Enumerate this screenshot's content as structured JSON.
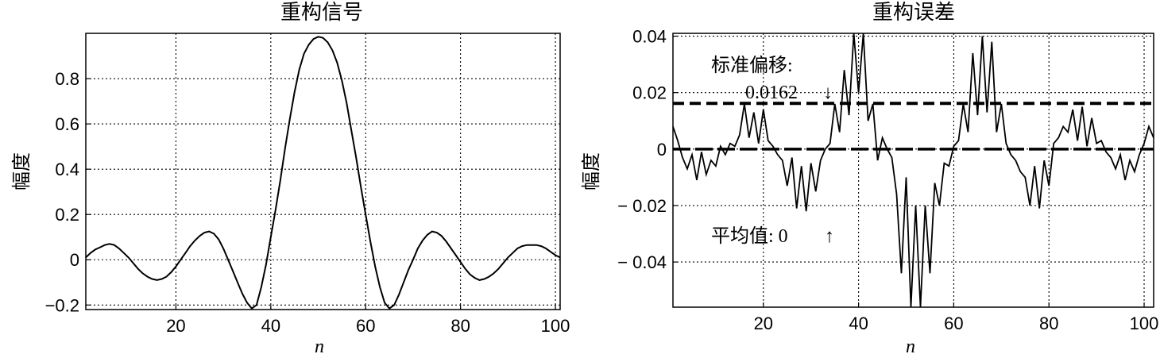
{
  "figure_titles": [
    "重构信号",
    "重构误差"
  ],
  "chart_data": [
    {
      "type": "line",
      "title": "重构信号",
      "xlabel": "n",
      "ylabel": "幅度",
      "xlim": [
        1,
        101
      ],
      "ylim": [
        -0.22,
        1.0
      ],
      "xticks": [
        20,
        40,
        60,
        80,
        100
      ],
      "xtick_labels": [
        "20",
        "40",
        "60",
        "80",
        "100"
      ],
      "yticks": [
        -0.2,
        0,
        0.2,
        0.4,
        0.6,
        0.8
      ],
      "ytick_labels": [
        "−0.2",
        "0",
        "0.2",
        "0.4",
        "0.6",
        "0.8"
      ],
      "grid": true,
      "series": [
        {
          "x": [
            1,
            2,
            3,
            4,
            5,
            6,
            7,
            8,
            9,
            10,
            11,
            12,
            13,
            14,
            15,
            16,
            17,
            18,
            19,
            20,
            21,
            22,
            23,
            24,
            25,
            26,
            27,
            28,
            29,
            30,
            31,
            32,
            33,
            34,
            35,
            36,
            37,
            38,
            39,
            40,
            41,
            42,
            43,
            44,
            45,
            46,
            47,
            48,
            49,
            50,
            51,
            52,
            53,
            54,
            55,
            56,
            57,
            58,
            59,
            60,
            61,
            62,
            63,
            64,
            65,
            66,
            67,
            68,
            69,
            70,
            71,
            72,
            73,
            74,
            75,
            76,
            77,
            78,
            79,
            80,
            81,
            82,
            83,
            84,
            85,
            86,
            87,
            88,
            89,
            90,
            91,
            92,
            93,
            94,
            95,
            96,
            97,
            98,
            99,
            100,
            101
          ],
          "y": [
            0.01,
            0.03,
            0.045,
            0.055,
            0.065,
            0.07,
            0.065,
            0.05,
            0.03,
            0.01,
            -0.015,
            -0.04,
            -0.06,
            -0.075,
            -0.085,
            -0.09,
            -0.085,
            -0.075,
            -0.055,
            -0.03,
            0.0,
            0.03,
            0.06,
            0.085,
            0.105,
            0.12,
            0.125,
            0.115,
            0.09,
            0.05,
            0.0,
            -0.05,
            -0.1,
            -0.15,
            -0.19,
            -0.215,
            -0.2,
            -0.12,
            -0.02,
            0.1,
            0.22,
            0.35,
            0.49,
            0.62,
            0.74,
            0.84,
            0.91,
            0.95,
            0.975,
            0.985,
            0.98,
            0.96,
            0.925,
            0.87,
            0.79,
            0.69,
            0.57,
            0.45,
            0.32,
            0.2,
            0.08,
            -0.03,
            -0.12,
            -0.19,
            -0.215,
            -0.2,
            -0.155,
            -0.1,
            -0.045,
            0.0,
            0.05,
            0.085,
            0.11,
            0.125,
            0.12,
            0.105,
            0.08,
            0.05,
            0.02,
            -0.01,
            -0.04,
            -0.065,
            -0.08,
            -0.09,
            -0.085,
            -0.075,
            -0.06,
            -0.04,
            -0.015,
            0.01,
            0.03,
            0.05,
            0.06,
            0.065,
            0.065,
            0.065,
            0.06,
            0.05,
            0.035,
            0.02,
            0.01
          ]
        }
      ]
    },
    {
      "type": "line",
      "title": "重构误差",
      "xlabel": "n",
      "ylabel": "幅度",
      "xlim": [
        1,
        102
      ],
      "ylim": [
        -0.056,
        0.041
      ],
      "xticks": [
        20,
        40,
        60,
        80,
        100
      ],
      "xtick_labels": [
        "20",
        "40",
        "60",
        "80",
        "100"
      ],
      "yticks": [
        -0.04,
        -0.02,
        0,
        0.02,
        0.04
      ],
      "ytick_labels": [
        "− 0.04",
        "− 0.02",
        "0",
        "0.02",
        "0.04"
      ],
      "grid": true,
      "series": [
        {
          "x": [
            1,
            2,
            3,
            4,
            5,
            6,
            7,
            8,
            9,
            10,
            11,
            12,
            13,
            14,
            15,
            16,
            17,
            18,
            19,
            20,
            21,
            22,
            23,
            24,
            25,
            26,
            27,
            28,
            29,
            30,
            31,
            32,
            33,
            34,
            35,
            36,
            37,
            38,
            39,
            40,
            41,
            42,
            43,
            44,
            45,
            46,
            47,
            48,
            49,
            50,
            51,
            52,
            53,
            54,
            55,
            56,
            57,
            58,
            59,
            60,
            61,
            62,
            63,
            64,
            65,
            66,
            67,
            68,
            69,
            70,
            71,
            72,
            73,
            74,
            75,
            76,
            77,
            78,
            79,
            80,
            81,
            82,
            83,
            84,
            85,
            86,
            87,
            88,
            89,
            90,
            91,
            92,
            93,
            94,
            95,
            96,
            97,
            98,
            99,
            100,
            101,
            102
          ],
          "y": [
            0.008,
            0.003,
            -0.003,
            -0.007,
            -0.002,
            -0.011,
            -0.001,
            -0.009,
            -0.004,
            -0.006,
            0.001,
            -0.002,
            0.002,
            0.001,
            0.005,
            0.016,
            0.004,
            0.013,
            0.002,
            0.014,
            0.003,
            0.001,
            -0.002,
            -0.004,
            -0.013,
            -0.003,
            -0.021,
            -0.006,
            -0.022,
            -0.005,
            -0.015,
            -0.004,
            0.0,
            0.002,
            0.016,
            0.006,
            0.028,
            0.012,
            0.041,
            0.02,
            0.041,
            0.01,
            0.016,
            -0.004,
            0.004,
            0.0,
            -0.003,
            -0.016,
            -0.044,
            -0.01,
            -0.056,
            -0.02,
            -0.056,
            -0.02,
            -0.044,
            -0.012,
            -0.02,
            -0.005,
            -0.006,
            0.001,
            0.003,
            0.016,
            0.006,
            0.034,
            0.012,
            0.04,
            0.013,
            0.038,
            0.006,
            0.016,
            0.002,
            -0.002,
            -0.004,
            -0.008,
            -0.01,
            -0.02,
            -0.006,
            -0.021,
            -0.004,
            -0.013,
            0.002,
            0.004,
            0.008,
            0.006,
            0.014,
            0.003,
            0.015,
            0.001,
            0.011,
            0.002,
            0.003,
            -0.001,
            -0.003,
            -0.007,
            -0.002,
            -0.011,
            -0.004,
            -0.008,
            -0.002,
            0.002,
            0.008,
            0.004
          ]
        }
      ],
      "reference_lines": {
        "std_value": 0.0162,
        "mean_value": 0
      },
      "annotations": {
        "std_label": "标准偏移:",
        "std_value_label": "0.0162",
        "std_arrow": "↓",
        "mean_label": "平均值:  0",
        "mean_arrow": "↑"
      }
    }
  ]
}
